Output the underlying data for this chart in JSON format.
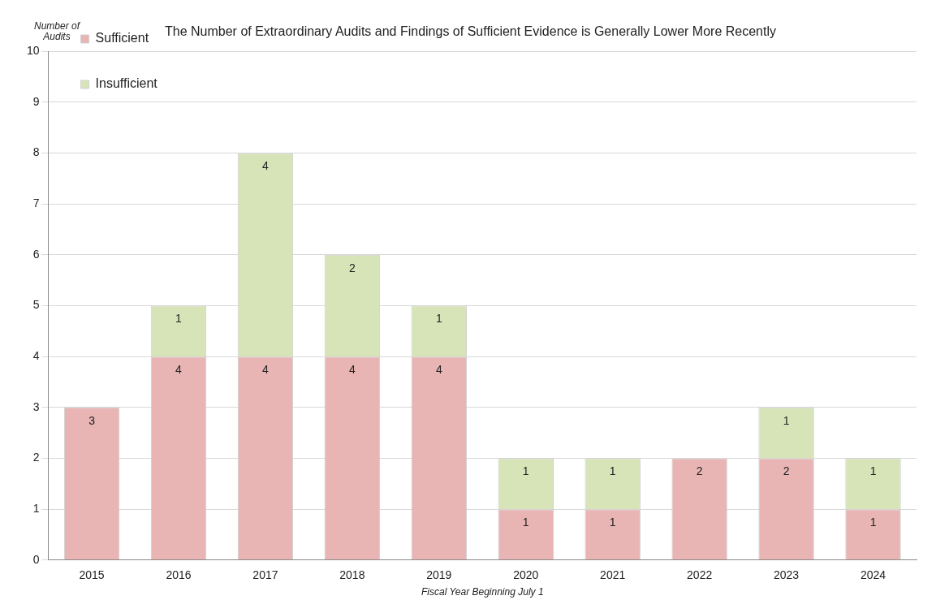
{
  "chart_data": {
    "type": "bar",
    "title": "The Number of Extraordinary Audits and Findings of Sufficient Evidence is Generally Lower More Recently",
    "ylabel": "Number of Audits",
    "xlabel": "Fiscal Year Beginning July 1",
    "categories": [
      "2015",
      "2016",
      "2017",
      "2018",
      "2019",
      "2020",
      "2021",
      "2022",
      "2023",
      "2024"
    ],
    "series": [
      {
        "name": "Sufficient",
        "color": "#e8b4b4",
        "values": [
          3,
          4,
          4,
          4,
          4,
          1,
          1,
          2,
          2,
          1
        ]
      },
      {
        "name": "Insufficient",
        "color": "#d6e4b8",
        "values": [
          null,
          1,
          4,
          2,
          1,
          1,
          1,
          null,
          1,
          1
        ]
      }
    ],
    "stacked": true,
    "ylim": [
      0,
      10
    ],
    "yticks": [
      0,
      1,
      2,
      3,
      4,
      5,
      6,
      7,
      8,
      9,
      10
    ],
    "grid": "y",
    "legend": "top left",
    "data_labels": true
  }
}
